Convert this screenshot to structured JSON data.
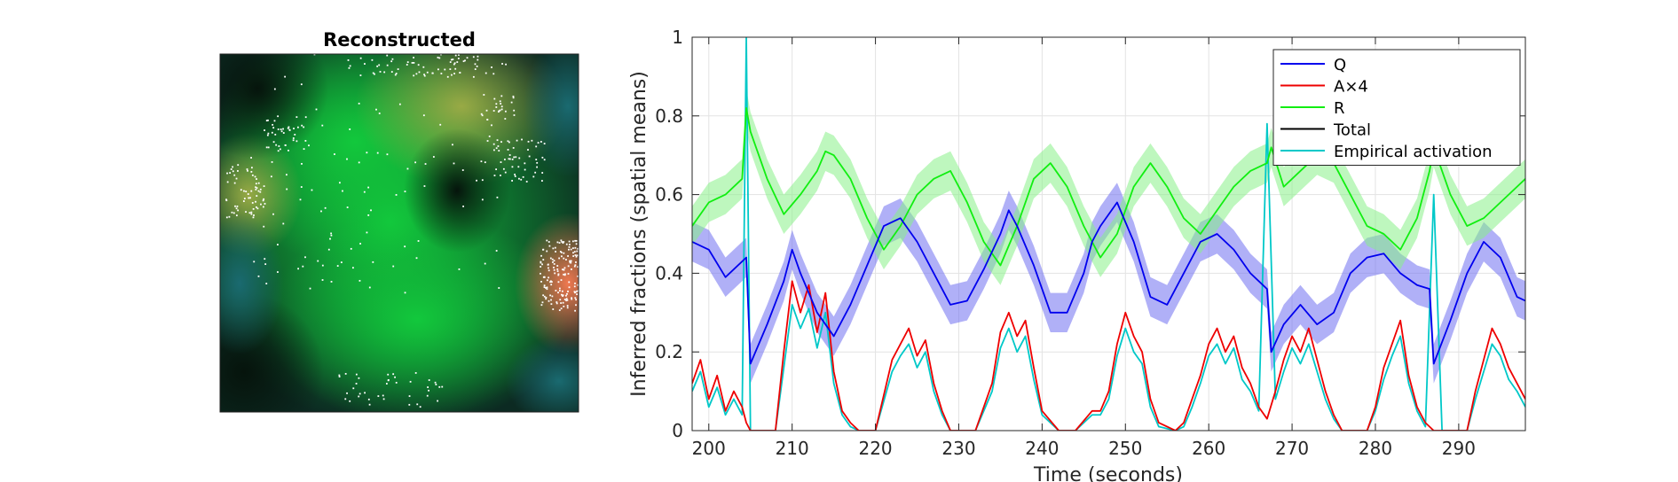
{
  "left_panel": {
    "title": "Reconstructed",
    "colors": {
      "background": "#0a1a14",
      "field": "#10c040",
      "hotspot": "#f07850",
      "dots": "#ffffff"
    }
  },
  "chart_data": {
    "type": "line",
    "xlabel": "Time (seconds)",
    "ylabel": "Inferred fractions (spatial means)",
    "xlim": [
      198,
      298
    ],
    "ylim": [
      0,
      1
    ],
    "xticks": [
      200,
      210,
      220,
      230,
      240,
      250,
      260,
      270,
      280,
      290
    ],
    "yticks": [
      0,
      0.2,
      0.4,
      0.6,
      0.8,
      1
    ],
    "ytick_labels": [
      "0",
      "0.2",
      "0.4",
      "0.6",
      "0.8",
      "1"
    ],
    "grid": true,
    "legend_position": "top-right",
    "series": [
      {
        "name": "Q",
        "color": "#0000ee",
        "band_color": "#7070f0",
        "x": [
          198,
          200,
          202,
          204.5,
          205,
          207,
          209,
          210,
          211,
          213,
          215,
          217,
          219,
          221,
          223,
          225,
          227,
          229,
          231,
          233,
          235,
          236,
          237,
          239,
          241,
          243,
          245,
          246,
          247,
          249,
          251,
          253,
          255,
          257,
          259,
          261,
          263,
          265,
          267,
          267.5,
          269,
          271,
          273,
          275,
          277,
          279,
          281,
          283,
          285,
          286.5,
          287,
          289,
          291,
          293,
          295,
          297,
          298
        ],
        "y": [
          0.48,
          0.46,
          0.39,
          0.44,
          0.17,
          0.27,
          0.38,
          0.46,
          0.4,
          0.3,
          0.24,
          0.32,
          0.42,
          0.52,
          0.54,
          0.48,
          0.4,
          0.32,
          0.33,
          0.41,
          0.5,
          0.56,
          0.52,
          0.42,
          0.3,
          0.3,
          0.4,
          0.48,
          0.52,
          0.58,
          0.48,
          0.34,
          0.32,
          0.4,
          0.48,
          0.5,
          0.46,
          0.4,
          0.36,
          0.2,
          0.27,
          0.32,
          0.27,
          0.3,
          0.4,
          0.44,
          0.45,
          0.4,
          0.37,
          0.36,
          0.17,
          0.28,
          0.4,
          0.48,
          0.44,
          0.34,
          0.33
        ],
        "band": 0.05
      },
      {
        "name": "A×4",
        "color": "#ee0000",
        "x": [
          198,
          199,
          200,
          201,
          202,
          203,
          204,
          204.5,
          205,
          206,
          208,
          209,
          210,
          211,
          212,
          213,
          214,
          215,
          216,
          217,
          218,
          220,
          222,
          223,
          224,
          225,
          226,
          227,
          228,
          229,
          230,
          232,
          234,
          235,
          236,
          237,
          238,
          239,
          240,
          242,
          244,
          246,
          247,
          248,
          249,
          250,
          251,
          252,
          253,
          254,
          256,
          257,
          258,
          259,
          260,
          261,
          262,
          263,
          264,
          265,
          266,
          267,
          268,
          269,
          270,
          271,
          272,
          273,
          274,
          275,
          276,
          278,
          279,
          280,
          281,
          282,
          283,
          284,
          285,
          286,
          287,
          288,
          290,
          291,
          292,
          293,
          294,
          295,
          296,
          297,
          298
        ],
        "y": [
          0.12,
          0.18,
          0.08,
          0.14,
          0.05,
          0.1,
          0.06,
          0.02,
          0.0,
          0.0,
          0.0,
          0.2,
          0.38,
          0.3,
          0.37,
          0.25,
          0.35,
          0.15,
          0.05,
          0.02,
          0.0,
          0.0,
          0.18,
          0.22,
          0.26,
          0.19,
          0.23,
          0.12,
          0.05,
          0.0,
          0.0,
          0.0,
          0.12,
          0.25,
          0.3,
          0.24,
          0.28,
          0.16,
          0.05,
          0.0,
          0.0,
          0.05,
          0.05,
          0.1,
          0.22,
          0.3,
          0.24,
          0.2,
          0.08,
          0.02,
          0.0,
          0.02,
          0.08,
          0.14,
          0.22,
          0.26,
          0.2,
          0.24,
          0.16,
          0.12,
          0.06,
          0.03,
          0.1,
          0.18,
          0.24,
          0.2,
          0.26,
          0.18,
          0.1,
          0.04,
          0.0,
          0.0,
          0.0,
          0.06,
          0.16,
          0.22,
          0.28,
          0.14,
          0.06,
          0.02,
          0.0,
          0.0,
          0.0,
          0.0,
          0.1,
          0.18,
          0.26,
          0.22,
          0.16,
          0.12,
          0.08
        ],
        "spikes": []
      },
      {
        "name": "R",
        "color": "#11ee11",
        "band_color": "#88f088",
        "x": [
          198,
          200,
          202,
          204,
          204.5,
          205,
          207,
          209,
          211,
          213,
          214,
          215,
          217,
          219,
          221,
          223,
          225,
          227,
          229,
          231,
          233,
          235,
          237,
          239,
          241,
          243,
          245,
          247,
          249,
          251,
          253,
          255,
          257,
          259,
          261,
          263,
          265,
          267,
          267.5,
          269,
          271,
          273,
          275,
          277,
          279,
          281,
          283,
          285,
          286.5,
          287,
          289,
          291,
          293,
          295,
          297,
          298
        ],
        "y": [
          0.52,
          0.58,
          0.6,
          0.64,
          0.82,
          0.76,
          0.64,
          0.55,
          0.6,
          0.66,
          0.71,
          0.7,
          0.64,
          0.54,
          0.46,
          0.52,
          0.6,
          0.64,
          0.66,
          0.58,
          0.48,
          0.42,
          0.52,
          0.64,
          0.68,
          0.62,
          0.52,
          0.44,
          0.5,
          0.62,
          0.68,
          0.62,
          0.54,
          0.5,
          0.56,
          0.62,
          0.66,
          0.68,
          0.72,
          0.62,
          0.66,
          0.7,
          0.68,
          0.6,
          0.52,
          0.5,
          0.46,
          0.54,
          0.66,
          0.72,
          0.6,
          0.52,
          0.54,
          0.58,
          0.62,
          0.64
        ],
        "band": 0.05
      },
      {
        "name": "Total",
        "color": "#000000",
        "x": [],
        "y": []
      },
      {
        "name": "Empirical activation",
        "color": "#00c8c8",
        "x": [
          198,
          199,
          200,
          201,
          202,
          203,
          204,
          204.5,
          205,
          206,
          208,
          209,
          210,
          211,
          212,
          213,
          214,
          215,
          216,
          217,
          218,
          220,
          222,
          223,
          224,
          225,
          226,
          227,
          228,
          229,
          230,
          232,
          234,
          235,
          236,
          237,
          238,
          239,
          240,
          242,
          244,
          246,
          247,
          248,
          249,
          250,
          251,
          252,
          253,
          254,
          256,
          257,
          258,
          259,
          260,
          261,
          262,
          263,
          264,
          265,
          266,
          267,
          268,
          269,
          270,
          271,
          272,
          273,
          274,
          275,
          276,
          278,
          279,
          280,
          281,
          282,
          283,
          284,
          285,
          286,
          287,
          288,
          290,
          291,
          292,
          293,
          294,
          295,
          296,
          297,
          298
        ],
        "y": [
          0.1,
          0.15,
          0.06,
          0.11,
          0.04,
          0.08,
          0.04,
          1.0,
          0.0,
          0.0,
          0.0,
          0.16,
          0.32,
          0.26,
          0.31,
          0.21,
          0.3,
          0.12,
          0.04,
          0.01,
          0.0,
          0.0,
          0.15,
          0.19,
          0.22,
          0.16,
          0.2,
          0.1,
          0.04,
          0.0,
          0.0,
          0.0,
          0.1,
          0.21,
          0.26,
          0.2,
          0.24,
          0.13,
          0.04,
          0.0,
          0.0,
          0.04,
          0.04,
          0.08,
          0.19,
          0.26,
          0.2,
          0.17,
          0.06,
          0.01,
          0.0,
          0.01,
          0.06,
          0.12,
          0.19,
          0.22,
          0.17,
          0.21,
          0.13,
          0.1,
          0.05,
          0.78,
          0.08,
          0.15,
          0.21,
          0.17,
          0.22,
          0.15,
          0.08,
          0.03,
          0.0,
          0.0,
          0.0,
          0.05,
          0.13,
          0.19,
          0.24,
          0.12,
          0.05,
          0.01,
          0.6,
          0.0,
          0.0,
          0.0,
          0.08,
          0.15,
          0.22,
          0.19,
          0.13,
          0.1,
          0.06
        ]
      }
    ]
  }
}
